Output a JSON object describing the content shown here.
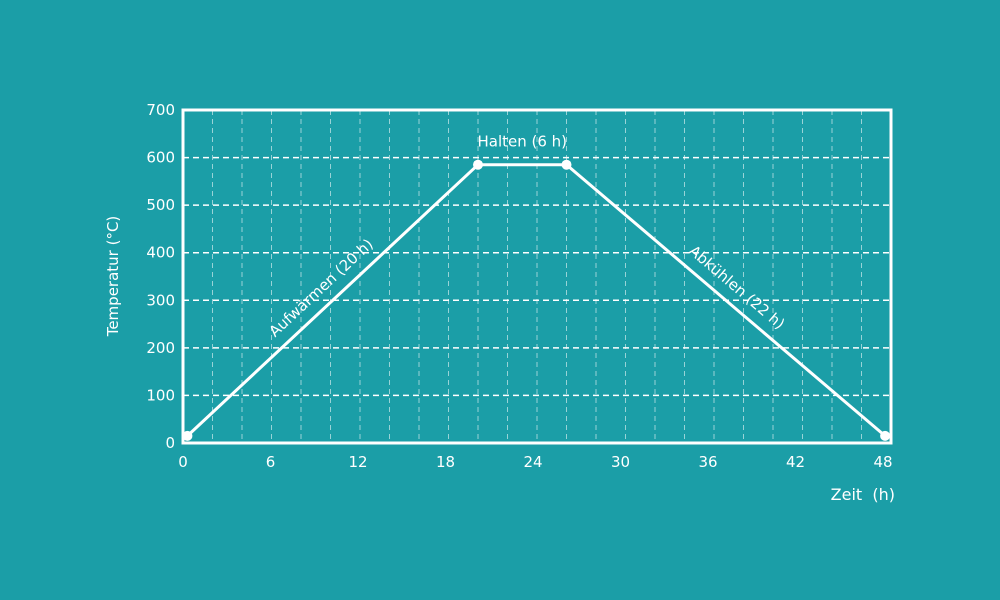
{
  "chart_data": {
    "type": "line",
    "title": "",
    "xlabel": "Zeit  (h)",
    "ylabel": "Temperatur (°C)",
    "xlim": [
      0,
      48
    ],
    "ylim": [
      0,
      700
    ],
    "x_ticks": [
      0,
      6,
      12,
      18,
      24,
      30,
      36,
      42,
      48
    ],
    "x_minor_grid_step": 2,
    "y_ticks": [
      0,
      100,
      200,
      300,
      400,
      500,
      600,
      700
    ],
    "grid": true,
    "series": [
      {
        "x": [
          0.3,
          20,
          26,
          47.6
        ],
        "y": [
          15,
          585,
          585,
          15
        ]
      }
    ],
    "annotations": [
      {
        "text": "Aufwärmen (20 h)",
        "segment": "heating"
      },
      {
        "text": "Halten (6 h)",
        "segment": "holding"
      },
      {
        "text": "Abkühlen (22 h)",
        "segment": "cooling"
      }
    ],
    "colors": {
      "background": "#1b9ea7",
      "foreground": "#ffffff"
    }
  }
}
